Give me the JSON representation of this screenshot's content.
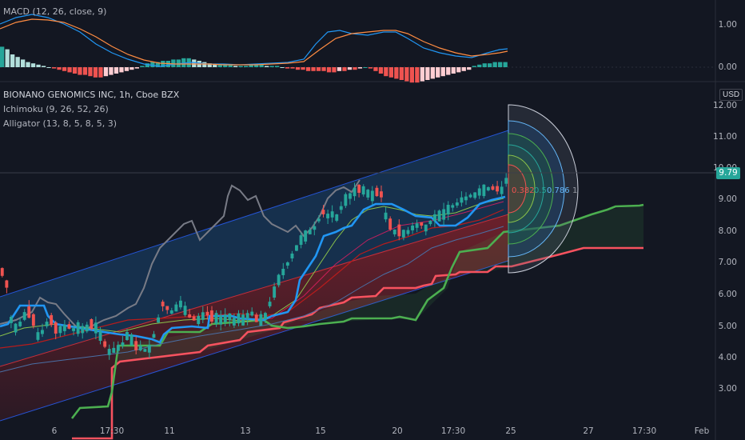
{
  "macd_pane": {
    "title": "MACD (12, 26, close, 9)",
    "y_ticks": [
      "1.00",
      "0.00"
    ]
  },
  "price_pane": {
    "symbol_title": "BIONANO GENOMICS INC, 1h, Cboe BZX",
    "indicators": [
      "Ichimoku (9, 26, 52, 26)",
      "Alligator (13, 8, 5, 8, 5, 3)"
    ],
    "currency": "USD",
    "y_ticks": [
      "12.00",
      "11.00",
      "10.00",
      "9.00",
      "8.00",
      "7.00",
      "6.00",
      "5.00",
      "4.00",
      "3.00"
    ],
    "last_price": "9.79",
    "fib_labels": [
      "0.382",
      "0.5",
      "0.786",
      "1"
    ]
  },
  "x_axis": [
    "6",
    "17:30",
    "11",
    "13",
    "15",
    "20",
    "17:30",
    "25",
    "27",
    "17:30",
    "Feb"
  ],
  "colors": {
    "background": "#131722",
    "up": "#26a69a",
    "down": "#ef5350",
    "tenkan": "#2196f3",
    "senkou_a": "#4caf50",
    "senkou_b": "#f7525f",
    "channel_upper": "#1e4a7a",
    "channel_lower": "#7a2730"
  }
}
